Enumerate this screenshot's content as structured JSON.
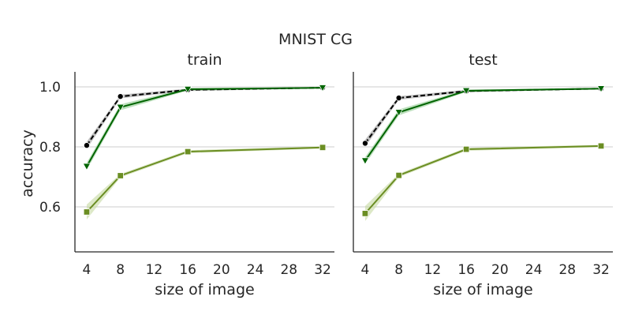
{
  "chart_data": {
    "type": "line",
    "suptitle": "MNIST CG",
    "ylabel": "accuracy",
    "xlabel": "size of image",
    "xlim": [
      2.6,
      33.4
    ],
    "ylim": [
      0.45,
      1.05
    ],
    "xticks": [
      4,
      8,
      12,
      16,
      20,
      24,
      28,
      32
    ],
    "yticks": [
      0.6,
      0.8,
      1.0
    ],
    "ytick_labels": [
      "0.6",
      "0.8",
      "1.0"
    ],
    "grid": "horizontal",
    "colors": {
      "black_series": "#000000",
      "green_series": "#006400",
      "olive_series": "#6b8e23",
      "grid": "#cccccc",
      "axis": "#262626"
    },
    "panels": [
      {
        "title": "train",
        "series": [
          {
            "name": "black",
            "marker": "circle",
            "x": [
              4,
              8,
              16,
              32
            ],
            "y": [
              0.805,
              0.968,
              0.99,
              0.997
            ],
            "band": [
              0.012,
              0.006,
              0.004,
              0.002
            ]
          },
          {
            "name": "green",
            "marker": "triangle-down",
            "x": [
              4,
              8,
              16,
              32
            ],
            "y": [
              0.735,
              0.932,
              0.992,
              0.997
            ],
            "band": [
              0.012,
              0.01,
              0.004,
              0.002
            ]
          },
          {
            "name": "olive",
            "marker": "square",
            "x": [
              4,
              8,
              16,
              32
            ],
            "y": [
              0.583,
              0.704,
              0.784,
              0.798
            ],
            "band": [
              0.025,
              0.006,
              0.005,
              0.004
            ]
          }
        ]
      },
      {
        "title": "test",
        "series": [
          {
            "name": "black",
            "marker": "circle",
            "x": [
              4,
              8,
              16,
              32
            ],
            "y": [
              0.812,
              0.963,
              0.986,
              0.994
            ],
            "band": [
              0.012,
              0.006,
              0.004,
              0.002
            ]
          },
          {
            "name": "green",
            "marker": "triangle-down",
            "x": [
              4,
              8,
              16,
              32
            ],
            "y": [
              0.754,
              0.915,
              0.987,
              0.994
            ],
            "band": [
              0.012,
              0.01,
              0.004,
              0.002
            ]
          },
          {
            "name": "olive",
            "marker": "square",
            "x": [
              4,
              8,
              16,
              32
            ],
            "y": [
              0.578,
              0.705,
              0.792,
              0.803
            ],
            "band": [
              0.025,
              0.006,
              0.005,
              0.004
            ]
          }
        ]
      }
    ]
  }
}
